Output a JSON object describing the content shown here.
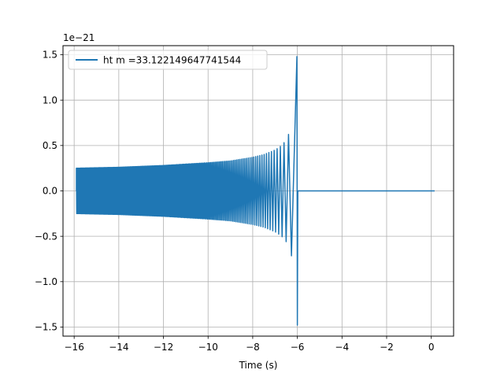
{
  "chart_data": {
    "type": "line",
    "title": "",
    "xlabel": "Time (s)",
    "ylabel": "",
    "y_offset_label": "1e−21",
    "xlim": [
      -16.5,
      1.0
    ],
    "ylim": [
      -1.6,
      1.6
    ],
    "x_ticks": [
      -16,
      -14,
      -12,
      -10,
      -8,
      -6,
      -4,
      -2,
      0
    ],
    "x_tick_labels": [
      "−16",
      "−14",
      "−12",
      "−10",
      "−8",
      "−6",
      "−4",
      "−2",
      "0"
    ],
    "y_ticks": [
      -1.5,
      -1.0,
      -0.5,
      0.0,
      0.5,
      1.0,
      1.5
    ],
    "y_tick_labels": [
      "−1.5",
      "−1.0",
      "−0.5",
      "0.0",
      "0.5",
      "1.0",
      "1.5"
    ],
    "grid": true,
    "legend_position": "upper-left",
    "series": [
      {
        "name": "ht m =33.122149647741544",
        "color": "#1f77b4",
        "signal_start": -15.9,
        "merger_time": -6.02,
        "signal_end": 0.15,
        "envelope": {
          "x": [
            -15.9,
            -14.0,
            -12.0,
            -10.0,
            -9.0,
            -8.0,
            -7.5,
            -7.0,
            -6.7,
            -6.5,
            -6.3,
            -6.2,
            -6.1,
            -6.05,
            -6.02
          ],
          "y": [
            0.25,
            0.26,
            0.28,
            0.31,
            0.33,
            0.37,
            0.4,
            0.45,
            0.5,
            0.56,
            0.68,
            0.78,
            1.05,
            1.25,
            1.48
          ]
        }
      }
    ]
  }
}
